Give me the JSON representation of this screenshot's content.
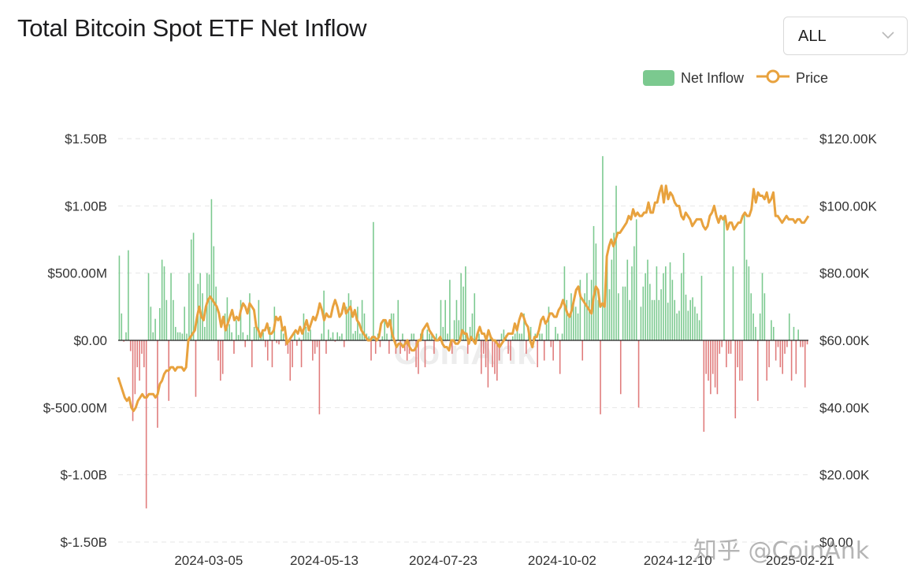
{
  "header": {
    "title": "Total Bitcoin Spot ETF Net Inflow"
  },
  "range_select": {
    "value": "ALL"
  },
  "legend": {
    "inflow_label": "Net Inflow",
    "price_label": "Price"
  },
  "colors": {
    "positive": "#7bc98f",
    "negative": "#e07b7b",
    "price": "#e8a23e",
    "grid": "#e6e6e6"
  },
  "watermark": "知乎 @CoinAnk",
  "chart_data": {
    "type": "bar",
    "title": "Total Bitcoin Spot ETF Net Inflow",
    "y_left": {
      "label": "Net Inflow",
      "ticks": [
        "$1.50B",
        "$1.00B",
        "$500.00M",
        "$0.00",
        "$-500.00M",
        "$-1.00B",
        "$-1.50B"
      ],
      "range": [
        -1.5,
        1.5
      ],
      "unit": "B USD"
    },
    "y_right": {
      "label": "Price",
      "ticks": [
        "$120.00K",
        "$100.00K",
        "$80.00K",
        "$60.00K",
        "$40.00K",
        "$20.00K",
        "$0.00"
      ],
      "range": [
        0,
        120
      ],
      "unit": "K USD"
    },
    "x_ticks": [
      "2024-03-05",
      "2024-05-13",
      "2024-07-23",
      "2024-10-02",
      "2024-12-10",
      "2025-02-21"
    ],
    "x_range": [
      "2024-01-11",
      "2025-02-26"
    ],
    "net_inflow_B": [
      0.63,
      0.2,
      -0.01,
      0.06,
      0.67,
      -0.08,
      -0.6,
      -0.4,
      -0.2,
      -0.3,
      -0.1,
      -0.2,
      -1.25,
      0.5,
      0.25,
      0.06,
      0.16,
      -0.65,
      0.24,
      0.6,
      0.55,
      0.3,
      -0.45,
      0.5,
      0.3,
      0.1,
      0.06,
      0.06,
      0.05,
      0.25,
      0.05,
      0.5,
      0.75,
      0.8,
      -0.42,
      0.42,
      0.5,
      0.35,
      0.1,
      0.5,
      0.49,
      1.05,
      0.7,
      0.4,
      -0.15,
      -0.3,
      -0.25,
      0.2,
      0.32,
      0.12,
      0.06,
      -0.1,
      0.15,
      0.04,
      0.3,
      0.06,
      -0.05,
      0.04,
      0.35,
      -0.2,
      0.1,
      0.1,
      0.3,
      0.02,
      0.06,
      -0.05,
      -0.15,
      0.1,
      -0.2,
      0.25,
      -0.02,
      -0.03,
      0.08,
      0.05,
      -0.04,
      -0.1,
      -0.3,
      -0.2,
      0.07,
      -0.04,
      0.02,
      -0.2,
      0.2,
      0.1,
      0.06,
      0.08,
      -0.15,
      -0.1,
      -0.05,
      -0.55,
      0.05,
      0.37,
      -0.1,
      0.08,
      0.02,
      0.06,
      -0.01,
      0.06,
      0.03,
      0.05,
      -0.05,
      0.25,
      0.35,
      0.3,
      0.05,
      0.07,
      0.25,
      0.05,
      0.3,
      0.2,
      0.05,
      0.03,
      -0.15,
      0.88,
      -0.1,
      0.05,
      -0.05,
      0.03,
      0.15,
      0.05,
      -0.1,
      0.2,
      0.2,
      -0.1,
      0.3,
      -0.1,
      0.05,
      -0.08,
      -0.15,
      -0.1,
      0.05,
      0.05,
      -0.2,
      -0.25,
      0.05,
      0.05,
      -0.2,
      0.08,
      0.05,
      0.04,
      -0.1,
      0.05,
      0.02,
      0.3,
      0.1,
      0.3,
      0.05,
      0.45,
      -0.1,
      0.15,
      0.3,
      0.15,
      0.5,
      0.4,
      0.55,
      -0.1,
      0.1,
      0.2,
      0.35,
      0.05,
      0.05,
      -0.25,
      -0.1,
      -0.2,
      -0.35,
      0.05,
      -0.2,
      -0.25,
      -0.3,
      -0.15,
      0.05,
      0.08,
      0.04,
      -0.1,
      -0.15,
      0.03,
      0.05,
      0.1,
      0.05,
      0.05,
      0.2,
      -0.1,
      0.05,
      0.1,
      -0.05,
      0.05,
      -0.2,
      0.05,
      0.05,
      -0.15,
      0.12,
      0.25,
      -0.05,
      -0.15,
      0.1,
      0.05,
      -0.25,
      0.05,
      0.55,
      0.3,
      0.2,
      0.35,
      0.3,
      0.25,
      0.2,
      0.45,
      -0.15,
      0.35,
      0.5,
      0.3,
      0.45,
      0.85,
      0.72,
      0.3,
      -0.55,
      1.37,
      0.3,
      0.63,
      0.38,
      0.6,
      0.8,
      1.15,
      0.35,
      -0.4,
      0.4,
      0.4,
      0.6,
      0.3,
      0.55,
      0.7,
      0.9,
      -0.5,
      0.25,
      0.4,
      0.5,
      0.6,
      0.42,
      0.3,
      0.3,
      0.55,
      0.3,
      0.38,
      0.5,
      0.55,
      0.28,
      0.58,
      0.45,
      0.3,
      0.2,
      0.22,
      0.5,
      0.65,
      0.34,
      0.22,
      0.3,
      0.32,
      0.25,
      0.2,
      0.15,
      0.48,
      -0.68,
      -0.25,
      -0.3,
      -0.4,
      -0.25,
      -0.35,
      -0.4,
      -0.1,
      -0.05,
      0.92,
      -0.2,
      -0.1,
      -0.1,
      0.55,
      -0.58,
      -0.2,
      -0.3,
      -0.3,
      0.95,
      0.6,
      0.55,
      0.35,
      0.2,
      0.1,
      -0.45,
      0.2,
      0.5,
      0.35,
      -0.3,
      -0.2,
      0.15,
      0.1,
      -0.15,
      -0.05,
      -0.2,
      -0.25,
      -0.1,
      -0.05,
      0.2,
      -0.3,
      0.1,
      -0.25,
      0.08,
      -0.05,
      -0.05,
      -0.35,
      -0.03
    ],
    "price_K": [
      49,
      47,
      45,
      43,
      42,
      43,
      40,
      39,
      40,
      42,
      43,
      44,
      43,
      43,
      44,
      44,
      44,
      43,
      44,
      47,
      48,
      50,
      51,
      51,
      52,
      52,
      51,
      52,
      52,
      52,
      51,
      52,
      60,
      61,
      62,
      63,
      67,
      70,
      67,
      66,
      70,
      72,
      73,
      72,
      71,
      70,
      68,
      64,
      67,
      63,
      65,
      67,
      69,
      66,
      67,
      66,
      69,
      71,
      70,
      68,
      71,
      70,
      69,
      64,
      63,
      61,
      63,
      63,
      65,
      62,
      62,
      63,
      67,
      66,
      67,
      63,
      64,
      59,
      60,
      61,
      62,
      63,
      62,
      64,
      62,
      64,
      66,
      63,
      65,
      67,
      66,
      68,
      71,
      69,
      66,
      68,
      67,
      67,
      70,
      72,
      70,
      67,
      68,
      71,
      68,
      69,
      70,
      67,
      69,
      66,
      65,
      63,
      62,
      61,
      60,
      60,
      61,
      61,
      60,
      61,
      65,
      66,
      66,
      64,
      66,
      62,
      60,
      58,
      59,
      59,
      58,
      59,
      60,
      58,
      57,
      57,
      58,
      60,
      60,
      63,
      64,
      65,
      63,
      62,
      61,
      60,
      60,
      61,
      59,
      58,
      58,
      57,
      60,
      60,
      59,
      59,
      60,
      63,
      62,
      62,
      59,
      61,
      60,
      59,
      62,
      64,
      62,
      62,
      60,
      63,
      61,
      60,
      60,
      59,
      58,
      59,
      60,
      61,
      62,
      62,
      62,
      65,
      63,
      66,
      68,
      67,
      65,
      64,
      60,
      58,
      61,
      61,
      63,
      66,
      67,
      65,
      66,
      68,
      68,
      67,
      67,
      69,
      70,
      72,
      70,
      68,
      67,
      69,
      72,
      75,
      76,
      73,
      72,
      71,
      70,
      69,
      68,
      73,
      76,
      75,
      70,
      71,
      70,
      85,
      88,
      90,
      88,
      90,
      92,
      92,
      93,
      94,
      95,
      97,
      96,
      99,
      97,
      98,
      97,
      97,
      98,
      98,
      101,
      98,
      98,
      101,
      101,
      104,
      106,
      101,
      106,
      102,
      104,
      103,
      101,
      100,
      100,
      97,
      96,
      98,
      97,
      96,
      94,
      95,
      96,
      96,
      96,
      94,
      93,
      94,
      97,
      98,
      100,
      97,
      95,
      97,
      96,
      97,
      93,
      95,
      95,
      93,
      94,
      95,
      95,
      97,
      98,
      97,
      97,
      99,
      105,
      101,
      104,
      103,
      103,
      102,
      104,
      101,
      102,
      104,
      97,
      97,
      96,
      95,
      96,
      97,
      96,
      96,
      96,
      95,
      96,
      96,
      95,
      95,
      96,
      97
    ],
    "price_note": "approximate daily BTC price overlay"
  }
}
